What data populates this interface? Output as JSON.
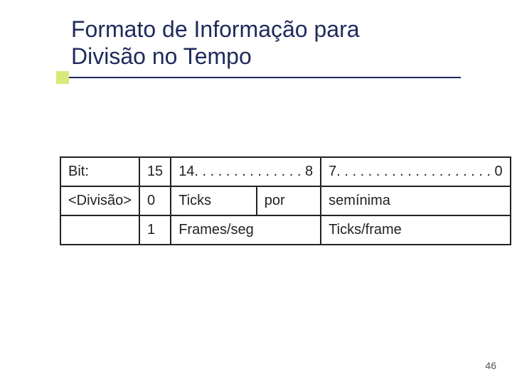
{
  "title": {
    "line1": "Formato de Informação para",
    "line2": "Divisão no Tempo",
    "color": "#1f2a5a",
    "fontsize": 32
  },
  "accent": {
    "color": "#d8e87a"
  },
  "table": {
    "rows": [
      [
        {
          "text": "Bit:"
        },
        {
          "text": "15"
        },
        {
          "text": "14. . . . . . . . . . . . . . 8",
          "colspan": 2
        },
        {
          "text": "7. . . . . . . . . . . . . . . . . . . . 0"
        }
      ],
      [
        {
          "text": "<Divisão>"
        },
        {
          "text": "0"
        },
        {
          "text": "Ticks"
        },
        {
          "text": "por"
        },
        {
          "text": "semínima"
        }
      ],
      [
        {
          "text": ""
        },
        {
          "text": "1"
        },
        {
          "text": "Frames/seg",
          "colspan": 2
        },
        {
          "text": "Ticks/frame"
        }
      ]
    ],
    "border_color": "#222222",
    "fontsize": 20
  },
  "page_number": "46"
}
